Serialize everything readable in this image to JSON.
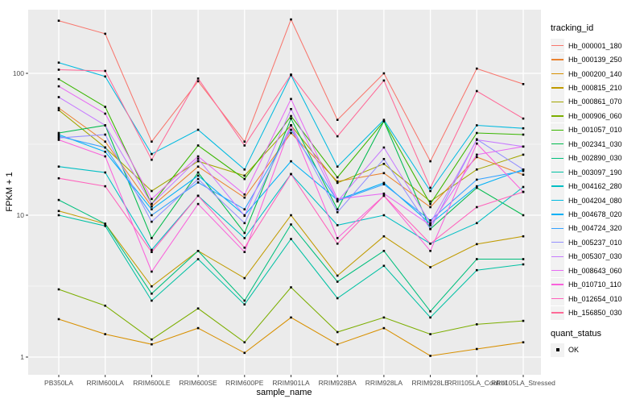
{
  "figure": {
    "panel_bg": "#EBEBEB",
    "grid_major_color": "#FFFFFF",
    "grid_minor_color": "#FFFFFF",
    "axis_text_color": "#4D4D4D",
    "tick_color": "#333333",
    "point_color": "#000000"
  },
  "chart_data": {
    "type": "line",
    "title": "",
    "xlabel": "sample_name",
    "ylabel": "FPKM + 1",
    "y_scale": "log10",
    "y_ticks": [
      1,
      10,
      100
    ],
    "y_minor": [
      3.162,
      31.62
    ],
    "ylim": [
      0.75,
      281
    ],
    "grid": true,
    "legend_position": "right",
    "categories": [
      "PB350LA",
      "RRIM600LA",
      "RRIM600LE",
      "RRIM600SE",
      "RRIM600PE",
      "RRIM901LA",
      "RRIM928BA",
      "RRIM928LA",
      "RRIM928LE",
      "RRII105LA_Control",
      "RRII105LA_Stressed"
    ],
    "series": [
      {
        "name": "Hb_000001_180",
        "color": "#F8766D",
        "values": [
          235,
          190,
          33,
          88,
          33,
          240,
          47,
          100,
          24,
          108,
          84
        ]
      },
      {
        "name": "Hb_000139_250",
        "color": "#EA8331",
        "values": [
          57,
          33,
          11.5,
          22,
          13.3,
          38,
          17.3,
          19.8,
          11.4,
          25.7,
          19.3
        ]
      },
      {
        "name": "Hb_000200_140",
        "color": "#D89000",
        "values": [
          1.85,
          1.45,
          1.23,
          1.6,
          1.07,
          1.9,
          1.23,
          1.6,
          1.02,
          1.14,
          1.27
        ]
      },
      {
        "name": "Hb_000815_210",
        "color": "#C09B00",
        "values": [
          10.7,
          8.7,
          3.15,
          5.6,
          3.6,
          10,
          3.75,
          7.1,
          4.3,
          6.25,
          7.1
        ]
      },
      {
        "name": "Hb_000861_070",
        "color": "#A3A500",
        "values": [
          55,
          30,
          14.8,
          24,
          19,
          43,
          16.9,
          23,
          12.5,
          21,
          26.7
        ]
      },
      {
        "name": "Hb_000906_060",
        "color": "#7CAE00",
        "values": [
          3.0,
          2.3,
          1.33,
          2.2,
          1.27,
          3.1,
          1.5,
          1.9,
          1.45,
          1.7,
          1.8
        ]
      },
      {
        "name": "Hb_001057_010",
        "color": "#39B600",
        "values": [
          91,
          58,
          12,
          31,
          18,
          50,
          18.5,
          46,
          12,
          38,
          37
        ]
      },
      {
        "name": "Hb_002341_030",
        "color": "#00BB4E",
        "values": [
          38,
          43,
          6.9,
          20,
          7.5,
          48,
          11,
          46,
          8,
          15.6,
          10
        ]
      },
      {
        "name": "Hb_002890_030",
        "color": "#00BF7D",
        "values": [
          12.8,
          8.7,
          2.8,
          5.6,
          2.5,
          8.6,
          3.4,
          5.6,
          2.1,
          4.9,
          4.9
        ]
      },
      {
        "name": "Hb_003097_190",
        "color": "#00C1A3",
        "values": [
          10.0,
          8.4,
          2.5,
          4.9,
          2.35,
          6.8,
          2.6,
          4.4,
          1.9,
          4.1,
          4.5
        ]
      },
      {
        "name": "Hb_004162_280",
        "color": "#00BFC4",
        "values": [
          22,
          20,
          5.7,
          13.7,
          6.9,
          19.5,
          8.5,
          10,
          6.3,
          8.8,
          15.8
        ]
      },
      {
        "name": "Hb_004204_080",
        "color": "#00BAE0",
        "values": [
          119,
          95,
          27,
          40,
          21,
          97,
          22,
          47,
          14.8,
          43,
          41
        ]
      },
      {
        "name": "Hb_004678_020",
        "color": "#00B0F6",
        "values": [
          37,
          28,
          11,
          19,
          10,
          24,
          12.8,
          16.9,
          8.7,
          16,
          21
        ]
      },
      {
        "name": "Hb_004724_320",
        "color": "#35A2FF",
        "values": [
          36,
          30,
          10,
          17,
          11,
          40,
          12.6,
          16.5,
          9.2,
          17.8,
          20.5
        ]
      },
      {
        "name": "Hb_005237_010",
        "color": "#9590FF",
        "values": [
          35,
          37,
          9,
          18,
          8.8,
          43,
          10.5,
          24.9,
          8,
          34.3,
          21
        ]
      },
      {
        "name": "Hb_005307_030",
        "color": "#C77CFF",
        "values": [
          68,
          43,
          12,
          25,
          9.9,
          56,
          12.5,
          30,
          8.8,
          34,
          30.5
        ]
      },
      {
        "name": "Hb_008643_060",
        "color": "#E76BF3",
        "values": [
          81,
          52,
          13,
          26,
          14,
          66,
          13,
          14.2,
          8.5,
          26.7,
          30.5
        ]
      },
      {
        "name": "Hb_010710_110",
        "color": "#FA62DB",
        "values": [
          34,
          26,
          4.0,
          12,
          5.5,
          43,
          6.9,
          13.7,
          5.6,
          32,
          14.6
        ]
      },
      {
        "name": "Hb_012654_010",
        "color": "#FF62BC",
        "values": [
          18.2,
          16,
          5.5,
          13.7,
          5.9,
          19.5,
          6.3,
          13.7,
          6.3,
          11.4,
          14.6
        ]
      },
      {
        "name": "Hb_156850_030",
        "color": "#FF6A98",
        "values": [
          106,
          104,
          24.6,
          92,
          31,
          98,
          36,
          89,
          15.6,
          75,
          48
        ]
      }
    ],
    "legend": {
      "color_title": "tracking_id",
      "shape_title": "quant_status",
      "shape_items": [
        {
          "label": "OK",
          "shape": "square",
          "color": "#000000"
        }
      ]
    }
  }
}
